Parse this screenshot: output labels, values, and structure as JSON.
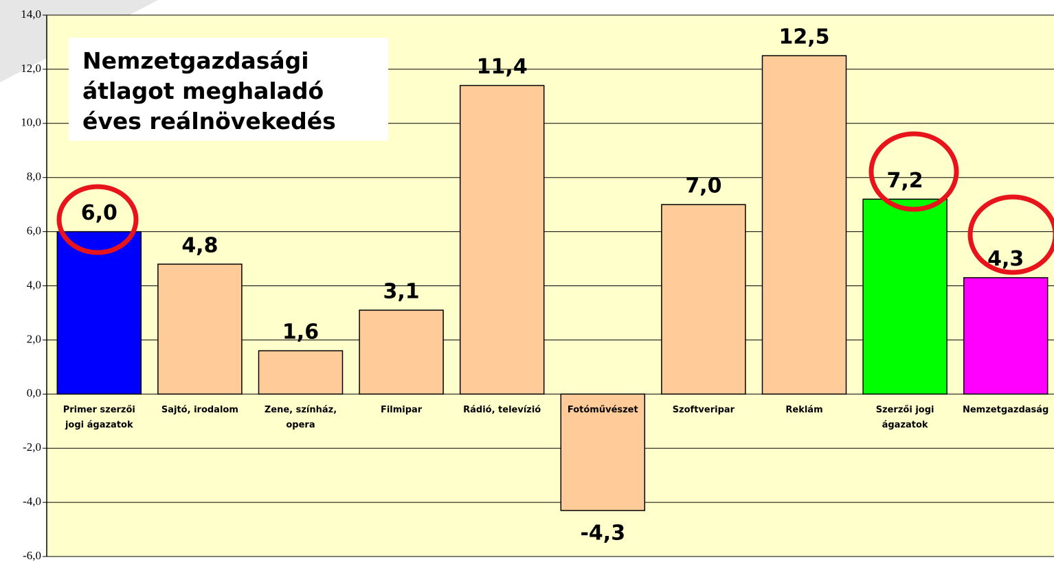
{
  "chart_data": {
    "type": "bar",
    "title": "Nemzetgazdasági\nátlagot meghaladó\néves reálnövekedés",
    "categories": [
      "Primer szerzői\njogi ágazatok",
      "Sajtó, irodalom",
      "Zene, színház,\nopera",
      "Filmipar",
      "Rádió, televízió",
      "Fotóművészet",
      "Szoftveripar",
      "Reklám",
      "Szerzői jogi\nágazatok",
      "Nemzetgazdaság"
    ],
    "values": [
      6.0,
      4.8,
      1.6,
      3.1,
      11.4,
      -4.3,
      7.0,
      12.5,
      7.2,
      4.3
    ],
    "value_labels": [
      "6,0",
      "4,8",
      "1,6",
      "3,1",
      "11,4",
      "-4,3",
      "7,0",
      "12,5",
      "7,2",
      "4,3"
    ],
    "colors": [
      "#0000ff",
      "#ffcc99",
      "#ffcc99",
      "#ffcc99",
      "#ffcc99",
      "#ffcc99",
      "#ffcc99",
      "#ffcc99",
      "#00ff00",
      "#ff00ff"
    ],
    "ylim": [
      -6,
      14
    ],
    "yticks": [
      {
        "value": -6,
        "label": "-6,0"
      },
      {
        "value": -4,
        "label": "-4,0"
      },
      {
        "value": -2,
        "label": "-2,0"
      },
      {
        "value": 0,
        "label": "0,0"
      },
      {
        "value": 2,
        "label": "2,0"
      },
      {
        "value": 4,
        "label": "4,0"
      },
      {
        "value": 6,
        "label": "6,0"
      },
      {
        "value": 8,
        "label": "8,0"
      },
      {
        "value": 10,
        "label": "10,0"
      },
      {
        "value": 12,
        "label": "12,0"
      },
      {
        "value": 14,
        "label": "14,0"
      }
    ],
    "grid": true
  }
}
